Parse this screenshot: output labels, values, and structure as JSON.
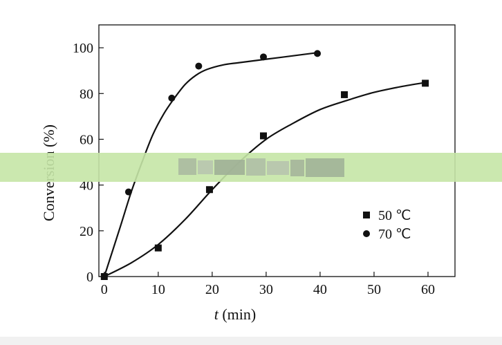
{
  "chart_data": {
    "type": "scatter",
    "xlabel_italic": "t",
    "xlabel_rest": " (min)",
    "ylabel": "Conversion (%)",
    "xlim": [
      -1,
      65
    ],
    "ylim": [
      0,
      110
    ],
    "xticks": [
      0,
      10,
      20,
      30,
      40,
      50,
      60
    ],
    "yticks": [
      0,
      20,
      40,
      60,
      80,
      100
    ],
    "grid": false,
    "legend_position": "lower-right",
    "series": [
      {
        "name": "50 ℃",
        "marker": "square",
        "color": "#111111",
        "x": [
          0,
          10,
          19.5,
          29.5,
          44.5,
          59.5
        ],
        "y": [
          0,
          12.5,
          38,
          61.5,
          79.5,
          84.5
        ],
        "curve_x": [
          0,
          5,
          10,
          15,
          20,
          25,
          30,
          35,
          40,
          45,
          50,
          55,
          60
        ],
        "curve_y": [
          0,
          6,
          14,
          25,
          38,
          50,
          60,
          67,
          73,
          77,
          80.5,
          83,
          85
        ]
      },
      {
        "name": "70 ℃",
        "marker": "circle",
        "color": "#111111",
        "x": [
          0,
          4.5,
          12.5,
          17.5,
          29.5,
          39.5
        ],
        "y": [
          0,
          37,
          78,
          92,
          96,
          97.5
        ],
        "curve_x": [
          0,
          3,
          5,
          7,
          9,
          11,
          13,
          15,
          17,
          19,
          22,
          25,
          30,
          35,
          40
        ],
        "curve_y": [
          0,
          22,
          37,
          50,
          62,
          71,
          78,
          84,
          88,
          90.5,
          92.5,
          93.5,
          95,
          96.5,
          98
        ]
      }
    ]
  },
  "overlay": {
    "band_color": "#c5e5a6",
    "note": "a translucent horizontal band covers the middle of the plot"
  }
}
